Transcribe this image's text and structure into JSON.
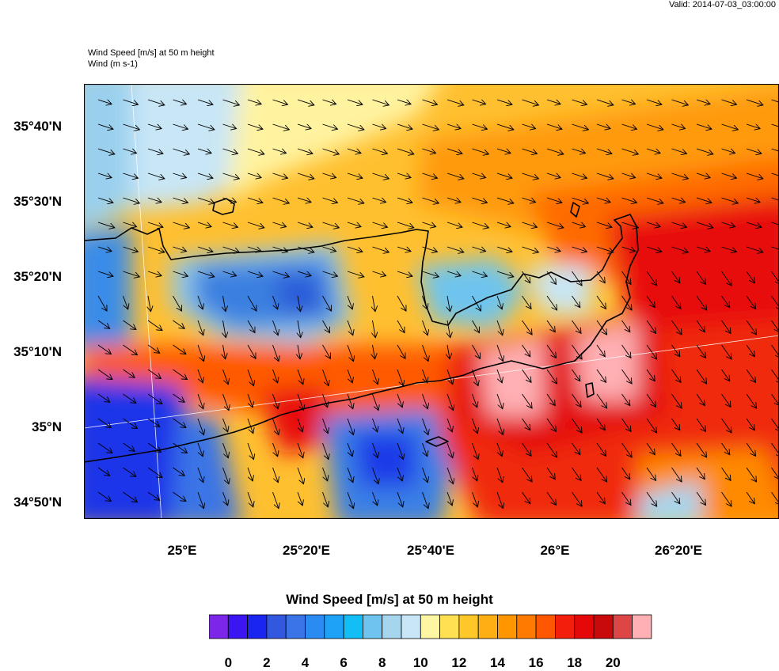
{
  "header": {
    "valid": "Valid: 2014-07-03_03:00:00",
    "field_title": "Wind Speed [m/s] at 50 m height",
    "vector_title": "Wind   (m s-1)"
  },
  "map": {
    "lat_labels": [
      "35°40'N",
      "35°30'N",
      "35°20'N",
      "35°10'N",
      "35°N",
      "34°50'N"
    ],
    "lon_labels": [
      "25°E",
      "25°20'E",
      "25°40'E",
      "26°E",
      "26°20'E"
    ]
  },
  "colorbar": {
    "title": "Wind Speed [m/s] at 50 m height",
    "labels": [
      "0",
      "2",
      "4",
      "6",
      "8",
      "10",
      "12",
      "14",
      "16",
      "18",
      "20"
    ],
    "colors": [
      "#7b26e8",
      "#3b16f2",
      "#1a26f0",
      "#3358e0",
      "#3a74e6",
      "#2a8cf2",
      "#1ea2f7",
      "#12bef5",
      "#6ec4ee",
      "#a6d6ee",
      "#c8e6f6",
      "#fff6a4",
      "#ffe050",
      "#ffc828",
      "#ffae14",
      "#ff9600",
      "#ff7a00",
      "#ff5600",
      "#f41e0c",
      "#e40808",
      "#c80a0a",
      "#dc4646",
      "#ffb0b4"
    ]
  }
}
